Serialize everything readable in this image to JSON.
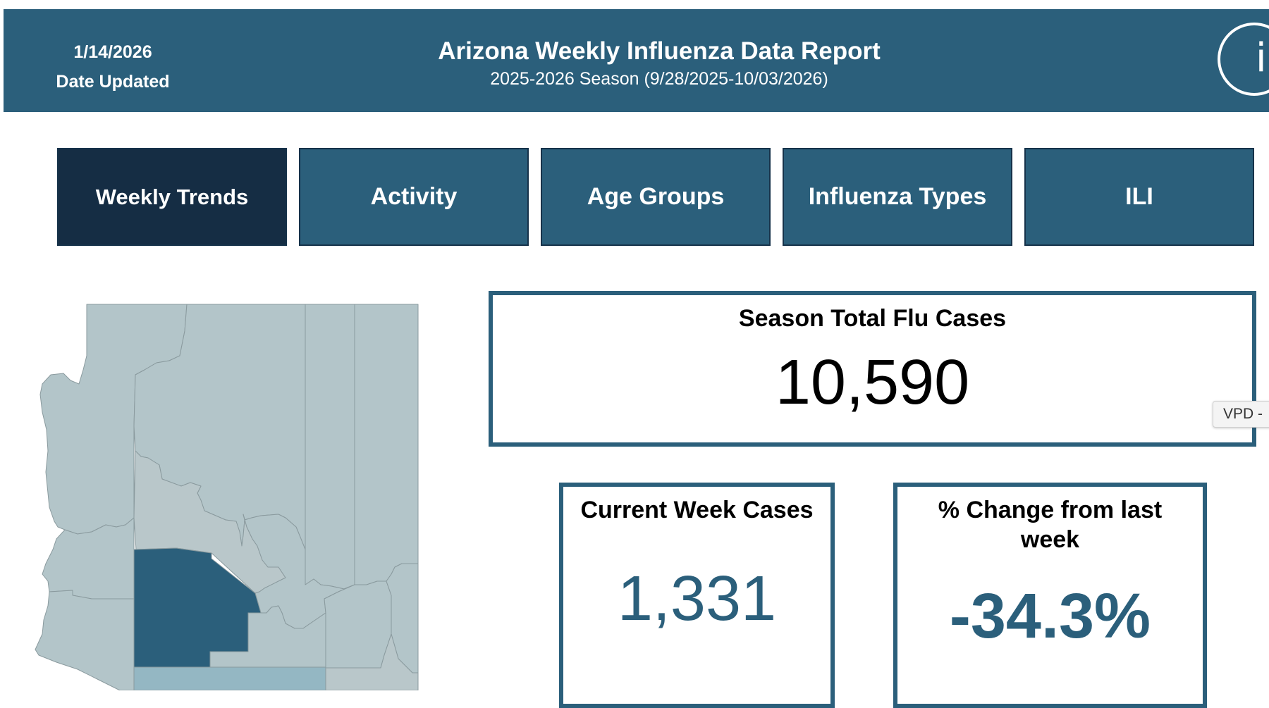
{
  "header": {
    "date_value": "1/14/2026",
    "date_label": "Date Updated",
    "title": "Arizona Weekly Influenza Data Report",
    "subtitle": "2025-2026 Season (9/28/2025-10/03/2026)",
    "info_glyph": "i",
    "info_icon": "info-icon"
  },
  "tabs": [
    {
      "label": "Weekly Trends",
      "active": true
    },
    {
      "label": "Activity",
      "active": false
    },
    {
      "label": "Age Groups",
      "active": false
    },
    {
      "label": "Influenza Types",
      "active": false
    },
    {
      "label": "ILI",
      "active": false
    }
  ],
  "stats": {
    "season_total": {
      "title": "Season Total Flu Cases",
      "value": "10,590"
    },
    "current_week": {
      "title": "Current Week Cases",
      "value": "1,331"
    },
    "pct_change": {
      "title": "% Change from last week",
      "value": "-34.3%"
    }
  },
  "side_tab": {
    "label": "VPD -"
  },
  "colors": {
    "header_bg": "#2b5f7b",
    "tab_bg": "#2b5f7b",
    "tab_active_bg": "#152d44",
    "county_default": "#b3c5c9",
    "county_highlight": "#2b5f7b",
    "county_mid": "#94b7c3"
  }
}
